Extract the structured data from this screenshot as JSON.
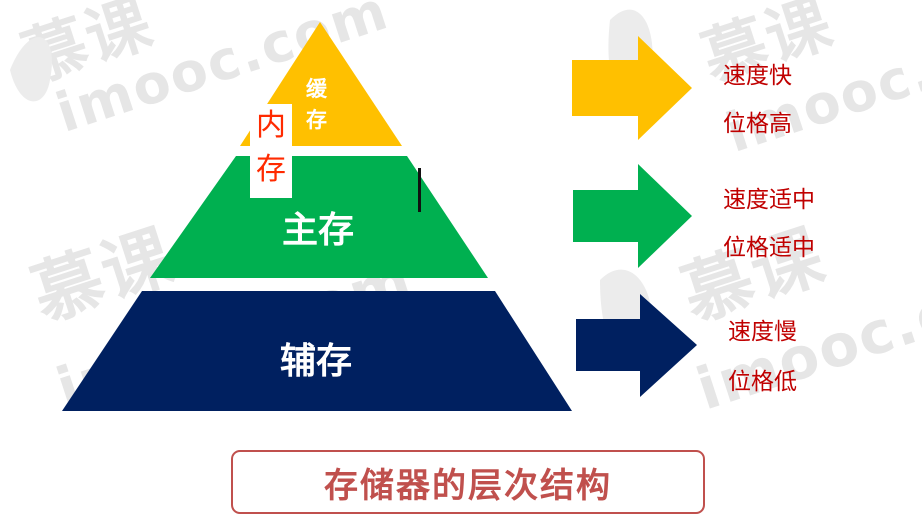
{
  "watermark": {
    "brand": "慕课",
    "domain": "imooc.com"
  },
  "pyramid": {
    "tiers": [
      {
        "label": "缓存",
        "color": "#ffc000"
      },
      {
        "label": "主存",
        "color": "#00b050"
      },
      {
        "label": "辅存",
        "color": "#002060"
      }
    ],
    "overlay_label": [
      "内",
      "存"
    ]
  },
  "arrows": [
    {
      "color": "#ffc000",
      "lines": [
        "速度快",
        "位格高"
      ]
    },
    {
      "color": "#00b050",
      "lines": [
        "速度适中",
        "位格适中"
      ]
    },
    {
      "color": "#002060",
      "lines": [
        "速度慢",
        "位格低"
      ]
    }
  ],
  "title": "存储器的层次结构",
  "colors": {
    "label_red": "#c00000",
    "title_red": "#c0504d",
    "overlay_red": "#ff2a00"
  }
}
